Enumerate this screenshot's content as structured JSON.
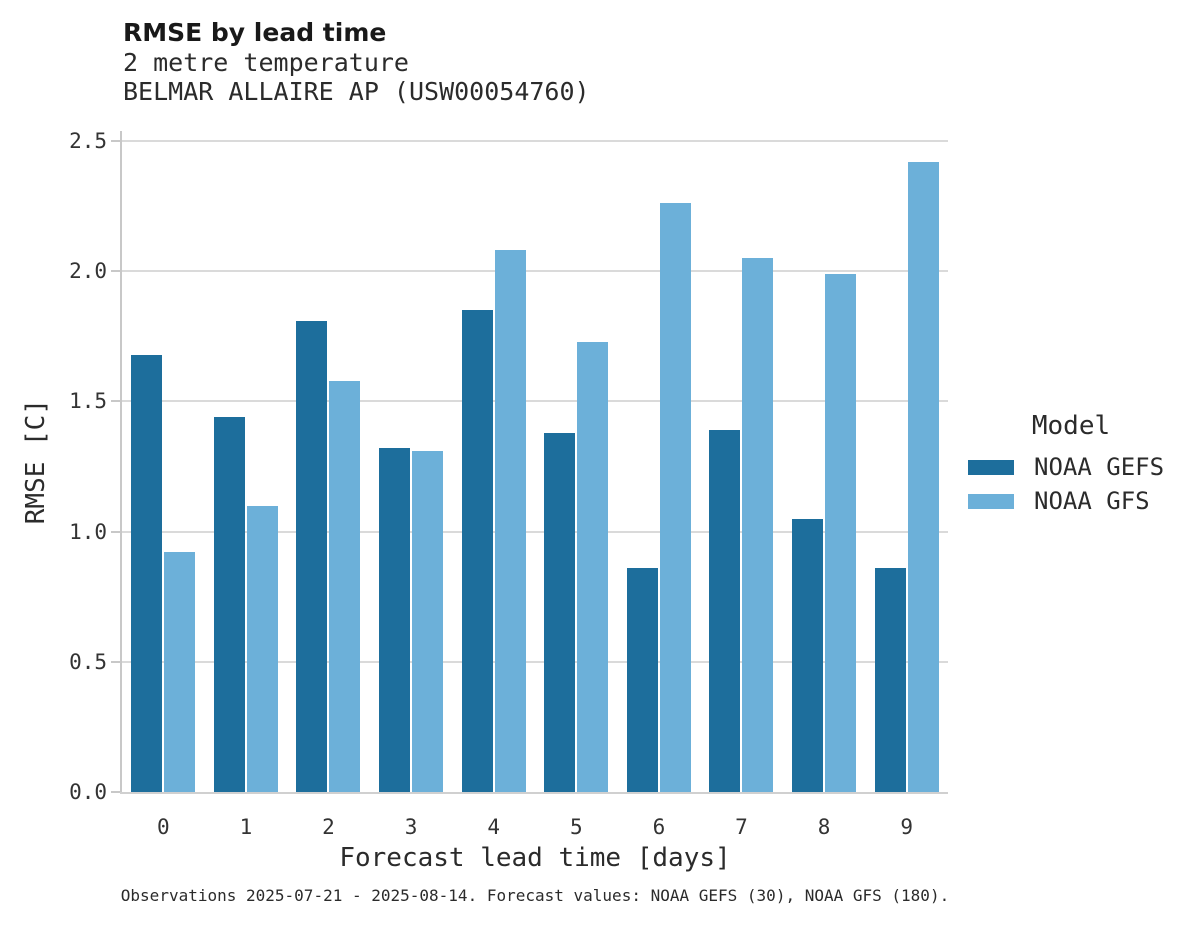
{
  "header": {
    "title": "RMSE by lead time",
    "subtitle_variable": "2 metre temperature",
    "subtitle_station": "BELMAR ALLAIRE AP (USW00054760)"
  },
  "chart_data": {
    "type": "bar",
    "title": "RMSE by lead time",
    "subtitle": [
      "2 metre temperature",
      "BELMAR ALLAIRE AP (USW00054760)"
    ],
    "categories": [
      "0",
      "1",
      "2",
      "3",
      "4",
      "5",
      "6",
      "7",
      "8",
      "9"
    ],
    "series": [
      {
        "name": "NOAA GEFS",
        "color": "#1d6e9c",
        "values": [
          1.68,
          1.44,
          1.81,
          1.32,
          1.85,
          1.38,
          0.86,
          1.39,
          1.05,
          0.86
        ]
      },
      {
        "name": "NOAA GFS",
        "color": "#6cb0d9",
        "values": [
          0.92,
          1.1,
          1.58,
          1.31,
          2.08,
          1.73,
          2.26,
          2.05,
          1.99,
          2.42
        ]
      }
    ],
    "xlabel": "Forecast lead time [days]",
    "ylabel": "RMSE [C]",
    "ylim": [
      0,
      2.5
    ],
    "yticks": [
      "0.0",
      "0.5",
      "1.0",
      "1.5",
      "2.0",
      "2.5"
    ],
    "grid": true,
    "legend_title": "Model",
    "legend_position": "right"
  },
  "caption": "Observations 2025-07-21 - 2025-08-14. Forecast values: NOAA GEFS (30), NOAA GFS (180)."
}
